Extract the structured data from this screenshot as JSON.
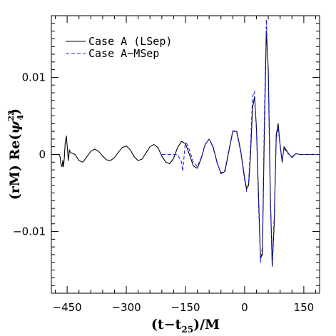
{
  "chart_data": {
    "type": "line",
    "title": "",
    "xlabel": "(t−t",
    "xlabel_sub": "25",
    "xlabel_tail": ")/M",
    "ylabel_prefix": "(rM) Re(",
    "ylabel_psi": "ψ",
    "ylabel_sup": "22",
    "ylabel_sub": "4",
    "ylabel_suffix": ")",
    "xlim": [
      -490,
      190
    ],
    "ylim": [
      -0.018,
      0.018
    ],
    "xticks": [
      -450,
      -300,
      -150,
      0,
      150
    ],
    "xtick_labels": [
      "−450",
      "−300",
      "−150",
      "0",
      "150"
    ],
    "yticks": [
      0.01,
      0,
      -0.01
    ],
    "ytick_labels": [
      "0.01",
      "0",
      "−0.01"
    ],
    "legend_position": "top-left",
    "grid": false,
    "series": [
      {
        "name": "Case A (LSep)",
        "style": "solid",
        "color": "#000000",
        "x": [
          -488,
          -470,
          -468,
          -466,
          -463,
          -461,
          -459,
          -457,
          -455,
          -452,
          -450,
          -447,
          -444,
          -442,
          -440,
          -430,
          -420,
          -410,
          -400,
          -390,
          -380,
          -370,
          -360,
          -350,
          -340,
          -330,
          -320,
          -310,
          -300,
          -290,
          -280,
          -270,
          -260,
          -250,
          -240,
          -230,
          -220,
          -210,
          -200,
          -190,
          -180,
          -170,
          -160,
          -150,
          -140,
          -130,
          -120,
          -110,
          -100,
          -90,
          -80,
          -70,
          -60,
          -50,
          -40,
          -30,
          -20,
          -10,
          0,
          5,
          10,
          15,
          20,
          25,
          30,
          35,
          40,
          45,
          50,
          55,
          60,
          65,
          70,
          75,
          80,
          85,
          90,
          95,
          100,
          110,
          120,
          130,
          140,
          150,
          160,
          170,
          185
        ],
        "y": [
          0,
          0,
          -0.0003,
          -0.0012,
          -0.0016,
          -0.0008,
          -0.0016,
          -0.0004,
          0.0015,
          0.0024,
          0.0012,
          -0.0008,
          0.0006,
          0.0003,
          0.0002,
          0.0,
          -0.0008,
          -0.001,
          -0.0003,
          0.0004,
          0.0007,
          0.0004,
          -0.0002,
          -0.0007,
          -0.0008,
          -0.0004,
          0.0003,
          0.0009,
          0.0011,
          0.0006,
          -0.0003,
          -0.0008,
          -0.0006,
          0.0002,
          0.001,
          0.0013,
          0.0009,
          -0.0002,
          -0.001,
          -0.0012,
          -0.0005,
          0.0009,
          0.0017,
          0.0014,
          0.0,
          -0.0015,
          -0.0018,
          -0.0005,
          0.0013,
          0.002,
          0.001,
          -0.001,
          -0.0025,
          -0.0022,
          0.0004,
          0.003,
          0.003,
          0.0005,
          -0.003,
          -0.0045,
          -0.004,
          0.0,
          0.006,
          0.0075,
          0.0035,
          -0.005,
          -0.0135,
          -0.013,
          0.003,
          0.016,
          0.011,
          -0.005,
          -0.0145,
          -0.009,
          0.0025,
          0.004,
          0.0012,
          -0.001,
          0.001,
          0.0002,
          -0.0004,
          0.0001,
          0.0,
          0.0,
          0.0,
          0.0,
          0
        ]
      },
      {
        "name": "Case A−MSep",
        "style": "dashed",
        "color": "#2222ee",
        "x": [
          -210,
          -200,
          -180,
          -170,
          -160,
          -157,
          -154,
          -151,
          -148,
          -145,
          -140,
          -130,
          -120,
          -110,
          -100,
          -90,
          -80,
          -70,
          -60,
          -50,
          -40,
          -30,
          -20,
          -10,
          0,
          5,
          10,
          15,
          20,
          25,
          30,
          35,
          40,
          45,
          50,
          55,
          60,
          65,
          70,
          75,
          80,
          85,
          90,
          95,
          100,
          110,
          120,
          130,
          140,
          150,
          160,
          170,
          185
        ],
        "y": [
          0,
          0,
          0,
          0,
          -0.001,
          -0.0022,
          -0.0005,
          0.0012,
          0.0015,
          0.0012,
          0.0006,
          -0.001,
          -0.0016,
          -0.0004,
          0.0013,
          0.002,
          0.0009,
          -0.0011,
          -0.0024,
          -0.002,
          0.0006,
          0.0031,
          0.0028,
          0.0003,
          -0.0033,
          -0.0048,
          -0.0035,
          0.001,
          0.0075,
          0.0082,
          0.003,
          -0.006,
          -0.014,
          -0.012,
          0.005,
          0.0175,
          0.01,
          -0.006,
          -0.014,
          -0.008,
          0.002,
          0.0035,
          0.001,
          -0.0008,
          0.0008,
          0.0001,
          -0.0003,
          0.0001,
          0.0,
          0.0,
          0.0,
          0.0,
          0
        ]
      }
    ]
  }
}
